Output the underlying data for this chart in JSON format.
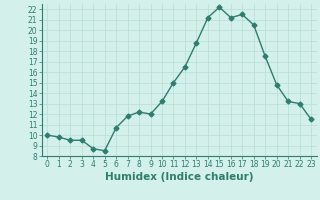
{
  "x": [
    0,
    1,
    2,
    3,
    4,
    5,
    6,
    7,
    8,
    9,
    10,
    11,
    12,
    13,
    14,
    15,
    16,
    17,
    18,
    19,
    20,
    21,
    22,
    23
  ],
  "y": [
    10,
    9.8,
    9.5,
    9.5,
    8.7,
    8.5,
    10.7,
    11.8,
    12.2,
    12.0,
    13.2,
    15.0,
    16.5,
    18.8,
    21.2,
    22.2,
    21.2,
    21.5,
    20.5,
    17.5,
    14.8,
    13.2,
    13.0,
    11.5
  ],
  "line_color": "#2e7d6e",
  "marker": "D",
  "marker_size": 2.5,
  "linewidth": 1.0,
  "xlabel": "Humidex (Indice chaleur)",
  "xlim": [
    -0.5,
    23.5
  ],
  "ylim": [
    8,
    22.5
  ],
  "yticks": [
    8,
    9,
    10,
    11,
    12,
    13,
    14,
    15,
    16,
    17,
    18,
    19,
    20,
    21,
    22
  ],
  "xtick_labels": [
    "0",
    "1",
    "2",
    "3",
    "4",
    "5",
    "6",
    "7",
    "8",
    "9",
    "10",
    "11",
    "12",
    "13",
    "14",
    "15",
    "16",
    "17",
    "18",
    "19",
    "20",
    "21",
    "22",
    "23"
  ],
  "bg_color": "#d4f0eb",
  "grid_color": "#b8ddd7",
  "tick_label_fontsize": 5.5,
  "xlabel_fontsize": 7.5
}
